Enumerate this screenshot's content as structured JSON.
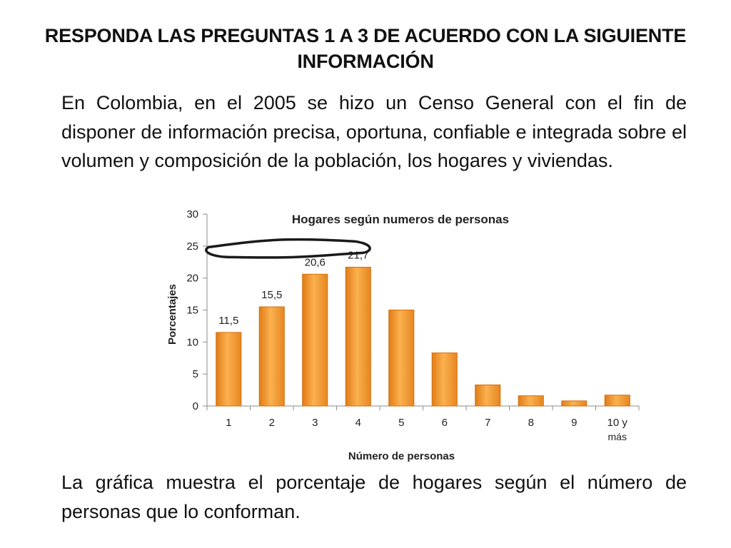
{
  "slide": {
    "title": "RESPONDA LAS PREGUNTAS 1 A 3 DE ACUERDO CON LA SIGUIENTE INFORMACIÓN",
    "intro": "En Colombia, en el 2005 se hizo un Censo General con el fin de disponer de información precisa, oportuna, confiable e integrada sobre el volumen y composición de la población, los hogares y viviendas.",
    "caption": "La gráfica muestra el porcentaje de hogares según el número de personas que lo conforman."
  },
  "chart_data": {
    "type": "bar",
    "title": "Hogares según numeros de personas",
    "xlabel": "Número de personas",
    "ylabel": "Porcentajes",
    "categories": [
      "1",
      "2",
      "3",
      "4",
      "5",
      "6",
      "7",
      "8",
      "9",
      "10 y más"
    ],
    "values": [
      11.5,
      15.5,
      20.6,
      21.7,
      15.0,
      8.3,
      3.3,
      1.6,
      0.8,
      1.7
    ],
    "data_labels": [
      "11,5",
      "15,5",
      "20,6",
      "21,7",
      "",
      "",
      "",
      "",
      "",
      ""
    ],
    "ylim": [
      0,
      30
    ],
    "yticks": [
      0,
      5,
      10,
      15,
      20,
      25,
      30
    ],
    "grid": false,
    "legend": "none",
    "bar_color": "#f39a2c",
    "bar_edge_color": "#d46f0e",
    "annotation": "hand-drawn bracket over bars 1 to 4"
  }
}
